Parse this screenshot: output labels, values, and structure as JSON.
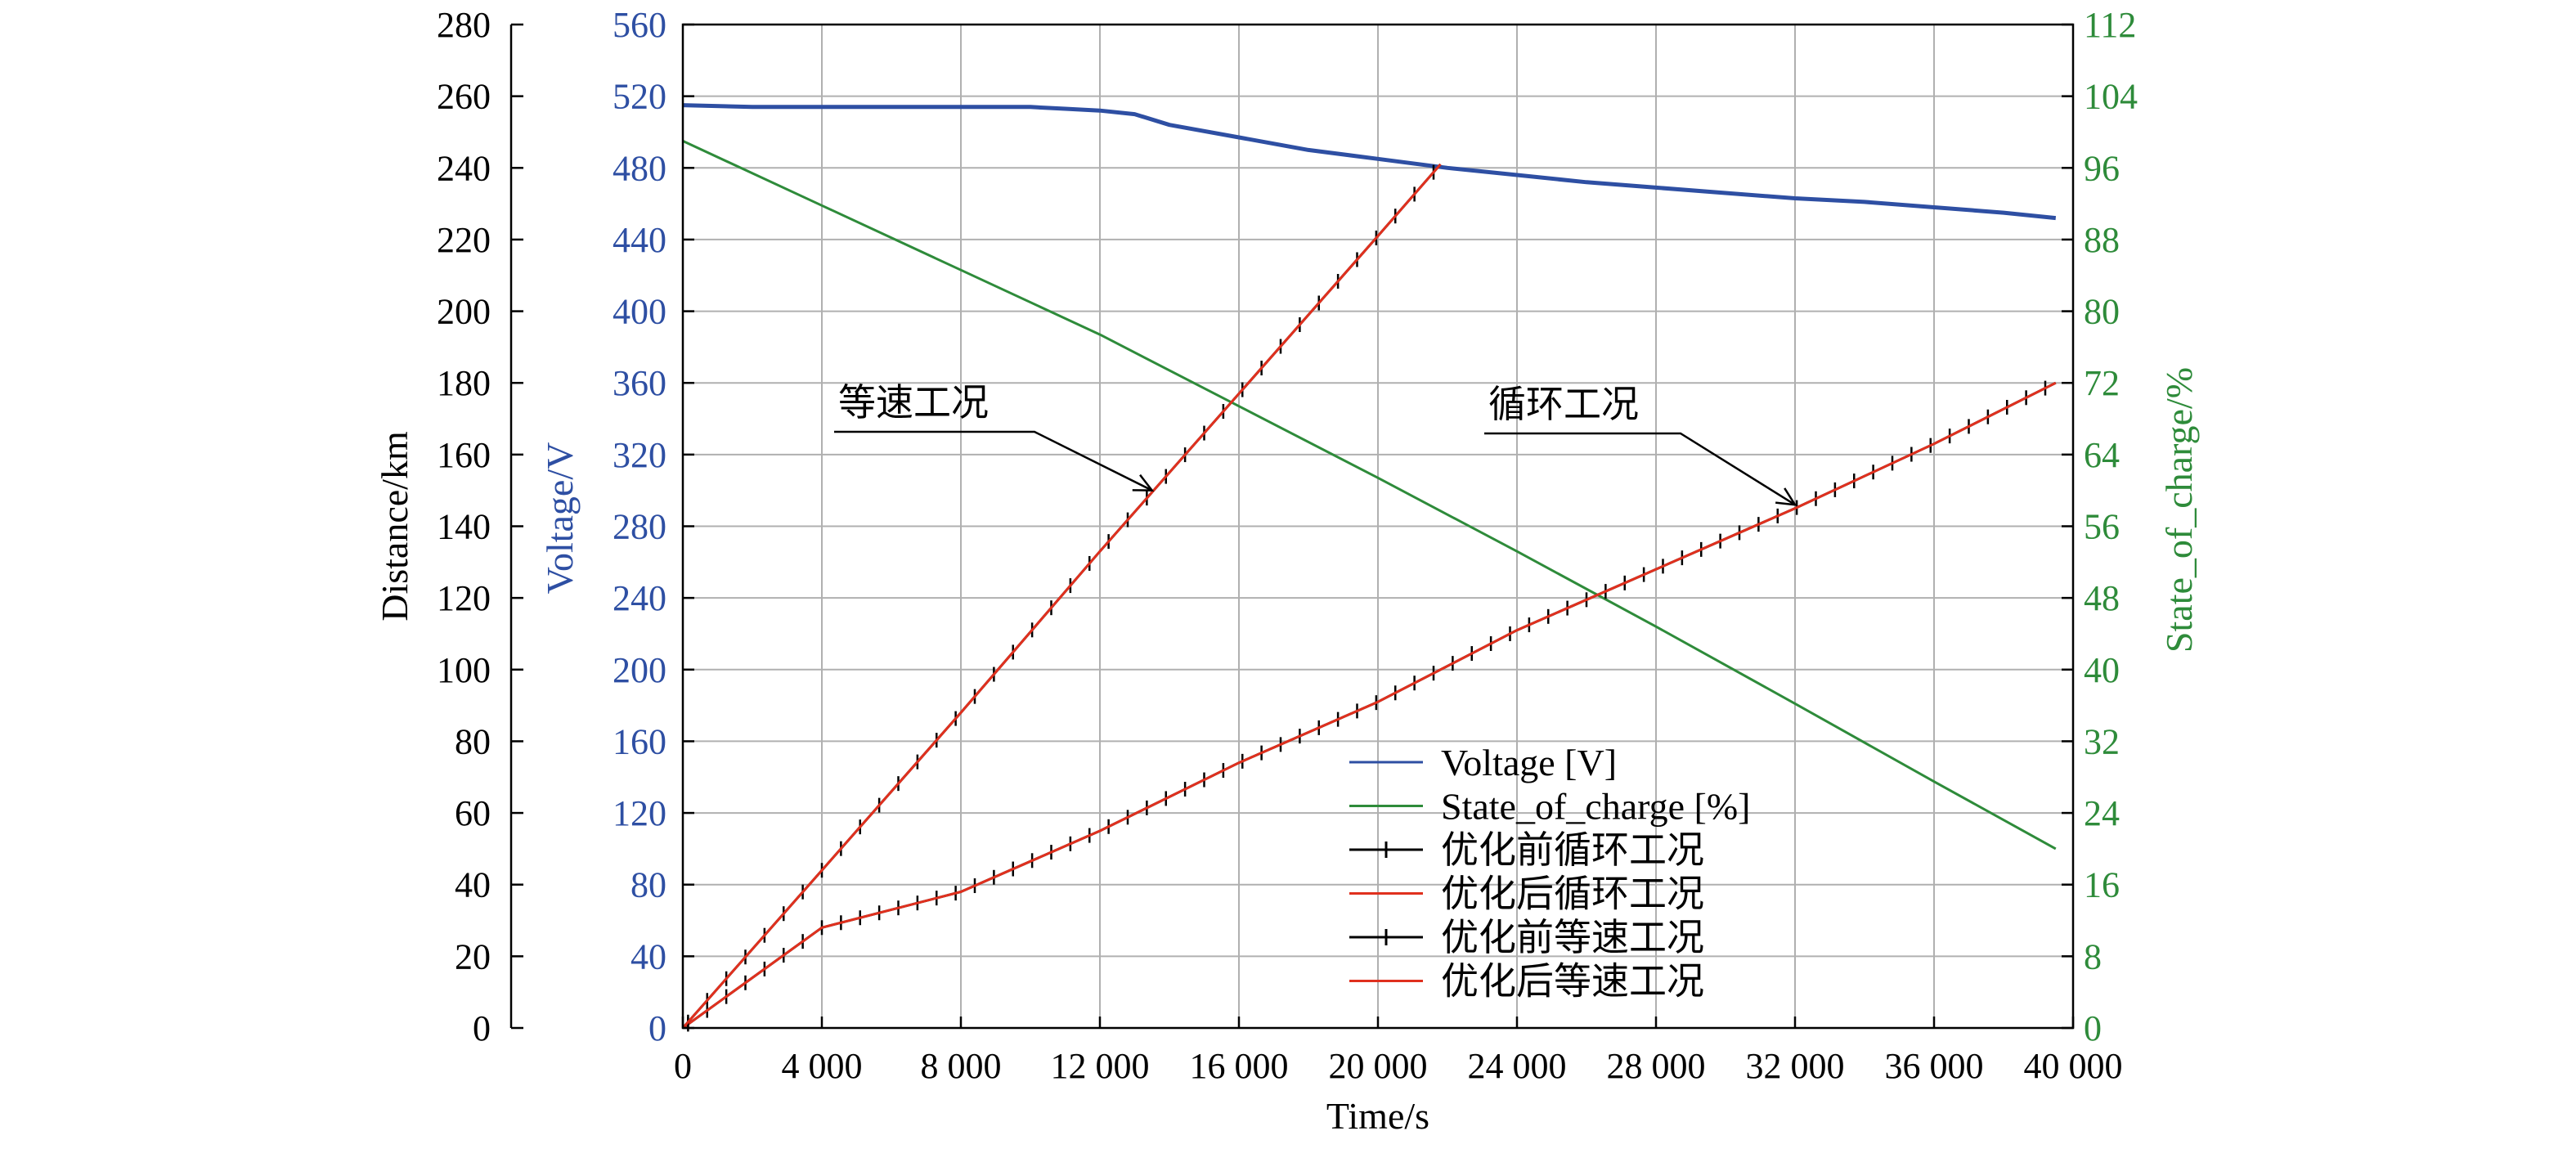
{
  "colors": {
    "voltage": "#2e4fa3",
    "soc": "#2e8b3a",
    "grid": "#b0b0b0",
    "black": "#000000",
    "red": "#e0301e"
  },
  "chart_data": {
    "type": "line",
    "grid": true,
    "legend_position": "bottom-right",
    "xlabel": "Time/s",
    "ylabel_left": "Distance/km",
    "ylabel_volt": "Voltage/V",
    "ylabel_right": "State_of_charge/%",
    "xlim": [
      0,
      40000
    ],
    "ylim_distance": [
      0,
      280
    ],
    "ylim_voltage": [
      0,
      560
    ],
    "ylim_soc": [
      0,
      112
    ],
    "x_ticks": [
      0,
      4000,
      8000,
      12000,
      16000,
      20000,
      24000,
      28000,
      32000,
      36000,
      40000
    ],
    "x_tick_labels": [
      "0",
      "4 000",
      "8 000",
      "12 000",
      "16 000",
      "20 000",
      "24 000",
      "28 000",
      "32 000",
      "36 000",
      "40 000"
    ],
    "distance_ticks": [
      "0",
      "20",
      "40",
      "60",
      "80",
      "100",
      "120",
      "140",
      "160",
      "180",
      "200",
      "220",
      "240",
      "260",
      "280"
    ],
    "voltage_ticks": [
      "0",
      "40",
      "80",
      "120",
      "160",
      "200",
      "240",
      "280",
      "320",
      "360",
      "400",
      "440",
      "480",
      "520",
      "560"
    ],
    "soc_ticks": [
      "0",
      "8",
      "16",
      "24",
      "32",
      "40",
      "48",
      "56",
      "64",
      "72",
      "80",
      "88",
      "96",
      "104",
      "112"
    ],
    "series": [
      {
        "name": "Voltage [V]",
        "axis": "voltage",
        "x": [
          0,
          2000,
          4000,
          6000,
          8000,
          10000,
          11000,
          12000,
          13000,
          14000,
          16000,
          18000,
          20000,
          22000,
          24000,
          26000,
          28000,
          30000,
          32000,
          34000,
          36000,
          38000,
          39500
        ],
        "y": [
          515,
          514,
          514,
          514,
          514,
          514,
          513,
          512,
          510,
          504,
          497,
          490,
          485,
          480,
          476,
          472,
          469,
          466,
          463,
          461,
          458,
          455,
          452
        ]
      },
      {
        "name": "State_of_charge [%]",
        "axis": "soc",
        "x": [
          0,
          4000,
          8000,
          12000,
          16000,
          20000,
          24000,
          28000,
          32000,
          36000,
          39500
        ],
        "y": [
          99,
          91.8,
          84.6,
          77.4,
          69.4,
          61.4,
          53.2,
          44.8,
          36.2,
          27.5,
          20
        ]
      },
      {
        "name": "优化前循环工况",
        "axis": "distance",
        "x": [
          0,
          4000,
          8000,
          12000,
          16000,
          20000,
          24000,
          28000,
          32000,
          36000,
          39500
        ],
        "y": [
          0,
          28,
          38,
          55,
          74,
          91,
          111,
          128,
          145,
          163,
          180
        ]
      },
      {
        "name": "优化后循环工况",
        "axis": "distance",
        "x": [
          0,
          4000,
          8000,
          12000,
          16000,
          20000,
          24000,
          28000,
          32000,
          36000,
          39500
        ],
        "y": [
          0,
          28,
          38,
          55,
          74,
          91,
          111,
          128,
          145,
          163,
          180
        ]
      },
      {
        "name": "优化前等速工况",
        "axis": "distance",
        "x": [
          0,
          4000,
          8000,
          12000,
          16000,
          20000,
          21800
        ],
        "y": [
          0,
          44,
          88,
          133,
          177,
          221,
          241
        ]
      },
      {
        "name": "优化后等速工况",
        "axis": "distance",
        "x": [
          0,
          4000,
          8000,
          12000,
          16000,
          20000,
          21800
        ],
        "y": [
          0,
          44,
          88,
          133,
          177,
          221,
          241
        ]
      }
    ],
    "annotations": [
      {
        "text": "等速工况",
        "target_x": 13500,
        "target_y": 150
      },
      {
        "text": "循环工况",
        "target_x": 32000,
        "target_y": 146
      }
    ]
  }
}
